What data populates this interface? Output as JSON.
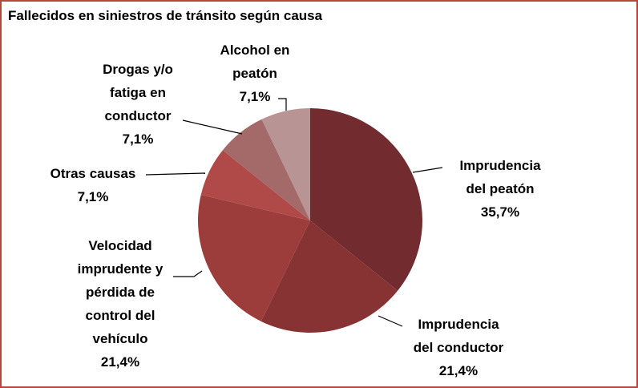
{
  "chart_data": {
    "type": "pie",
    "title": "Fallecidos en siniestros de tránsito según causa",
    "categories": [
      "Imprudencia\ndel peatón",
      "Imprudencia\ndel conductor",
      "Velocidad\nimprudente y\npérdida de\ncontrol del\nvehículo",
      "Otras causas",
      "Drogas y/o\nfatiga en\nconductor",
      "Alcohol en\npeatón"
    ],
    "values": [
      35.7,
      21.4,
      21.4,
      7.1,
      7.1,
      7.1
    ],
    "value_labels": [
      "35,7%",
      "21,4%",
      "21,4%",
      "7,1%",
      "7,1%",
      "7,1%"
    ],
    "colors": [
      "#722b2e",
      "#883333",
      "#9c3d3c",
      "#b04a48",
      "#a36a69",
      "#b89594"
    ]
  }
}
